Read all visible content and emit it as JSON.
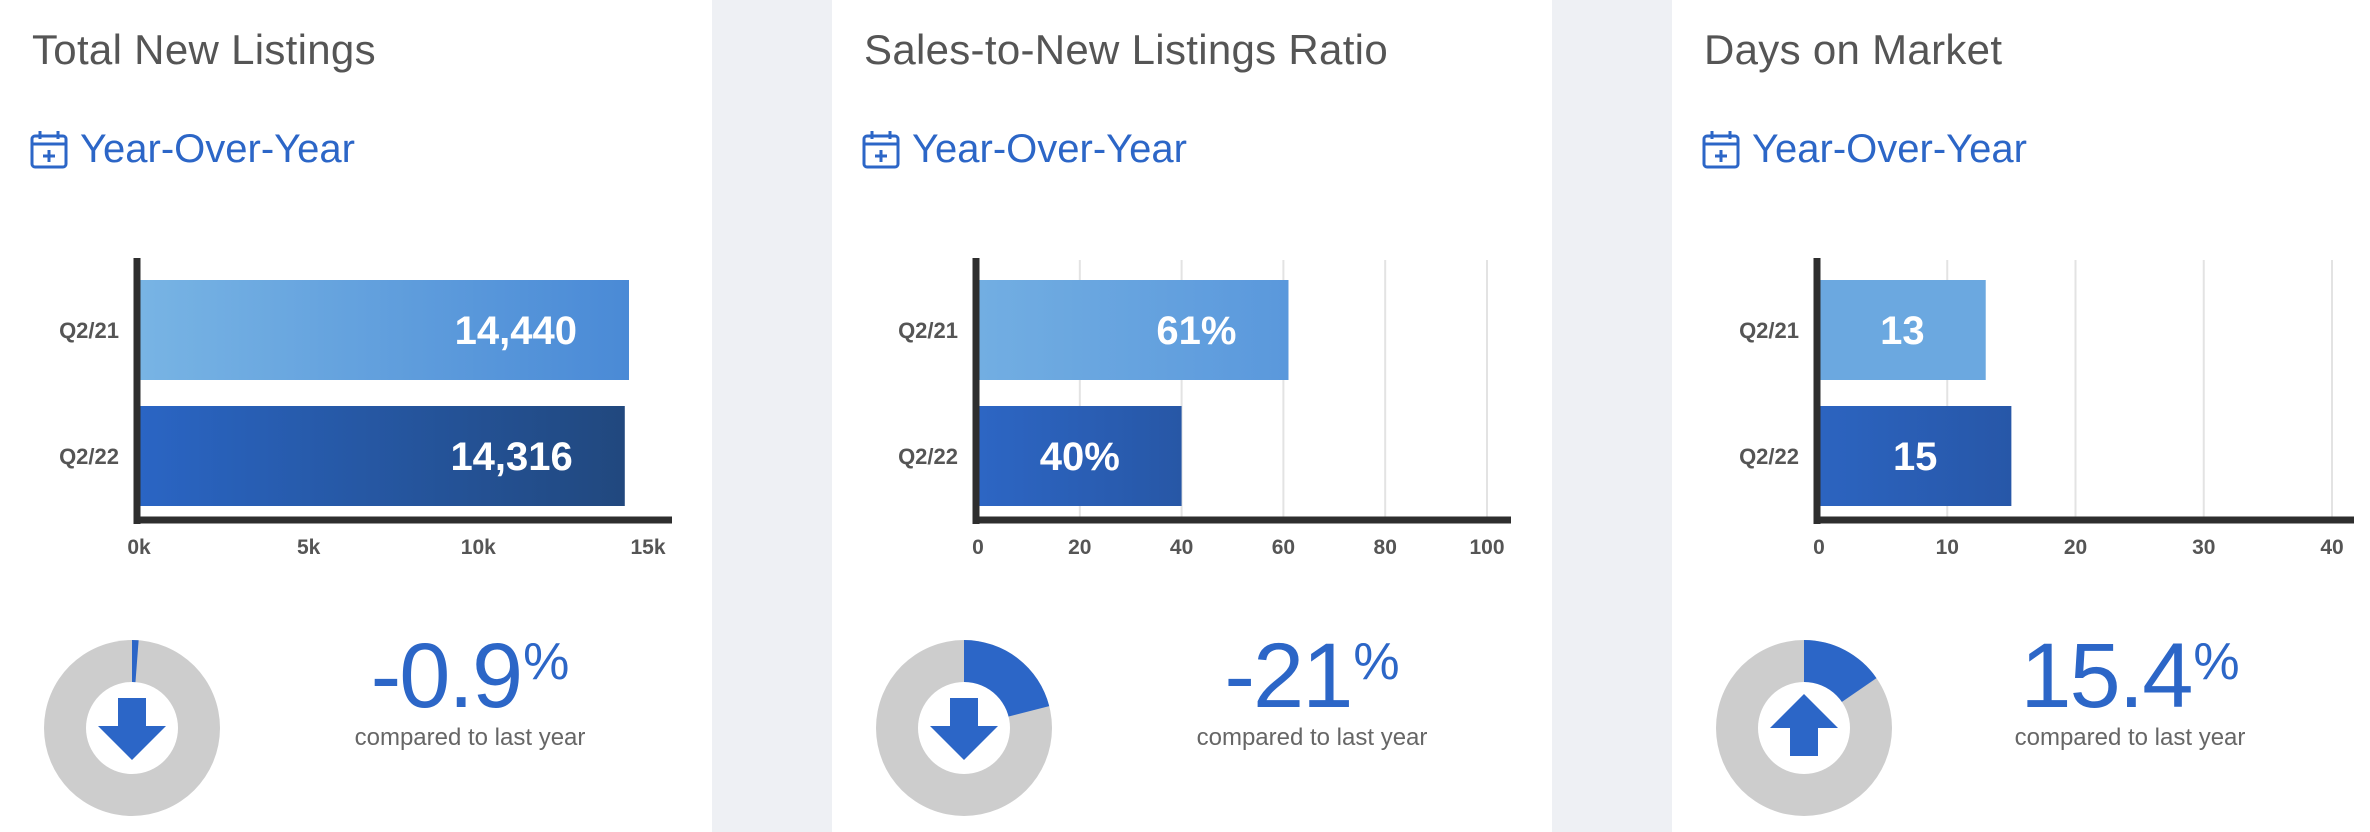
{
  "panels": [
    {
      "title": "Total New Listings",
      "period_label": "Year-Over-Year",
      "change": {
        "value": "-0.9",
        "unit": "%",
        "caption": "compared to last year",
        "direction": "down",
        "fraction": 0.009
      }
    },
    {
      "title": "Sales-to-New Listings Ratio",
      "period_label": "Year-Over-Year",
      "change": {
        "value": "-21",
        "unit": "%",
        "caption": "compared to last year",
        "direction": "down",
        "fraction": 0.21
      }
    },
    {
      "title": "Days on Market",
      "period_label": "Year-Over-Year",
      "change": {
        "value": "15.4",
        "unit": "%",
        "caption": "compared to last year",
        "direction": "up",
        "fraction": 0.154
      }
    }
  ],
  "chart_data": [
    {
      "type": "bar",
      "orientation": "horizontal",
      "categories": [
        "Q2/21",
        "Q2/22"
      ],
      "values": [
        14440,
        14316
      ],
      "data_labels": [
        "14,440",
        "14,316"
      ],
      "xlim": [
        0,
        15000
      ],
      "xticks": [
        0,
        5000,
        10000,
        15000
      ],
      "xtick_labels": [
        "0k",
        "5k",
        "10k",
        "15k"
      ],
      "grid": false,
      "colors": [
        [
          "#78b4e4",
          "#4a8ad6"
        ],
        [
          "#2a65c4",
          "#21487e"
        ]
      ]
    },
    {
      "type": "bar",
      "orientation": "horizontal",
      "categories": [
        "Q2/21",
        "Q2/22"
      ],
      "values": [
        61,
        40
      ],
      "data_labels": [
        "61%",
        "40%"
      ],
      "xlim": [
        0,
        100
      ],
      "xticks": [
        0,
        20,
        40,
        60,
        80,
        100
      ],
      "xtick_labels": [
        "0",
        "20",
        "40",
        "60",
        "80",
        "100"
      ],
      "grid": true,
      "colors": [
        [
          "#72aee2",
          "#5a98dc"
        ],
        [
          "#2d66c4",
          "#2757a6"
        ]
      ]
    },
    {
      "type": "bar",
      "orientation": "horizontal",
      "categories": [
        "Q2/21",
        "Q2/22"
      ],
      "values": [
        13,
        15
      ],
      "data_labels": [
        "13",
        "15"
      ],
      "xlim": [
        0,
        40
      ],
      "xticks": [
        0,
        10,
        20,
        30,
        40
      ],
      "xtick_labels": [
        "0",
        "10",
        "20",
        "30",
        "40"
      ],
      "grid": true,
      "colors": [
        [
          "#6ba8e0",
          "#6ba8e0"
        ],
        [
          "#2c64c0",
          "#2757a8"
        ]
      ]
    }
  ],
  "colors": {
    "accent": "#2c66c7",
    "donut_track": "#cdcdcd",
    "axis": "#2e2e2e",
    "tick_text": "#555555"
  }
}
